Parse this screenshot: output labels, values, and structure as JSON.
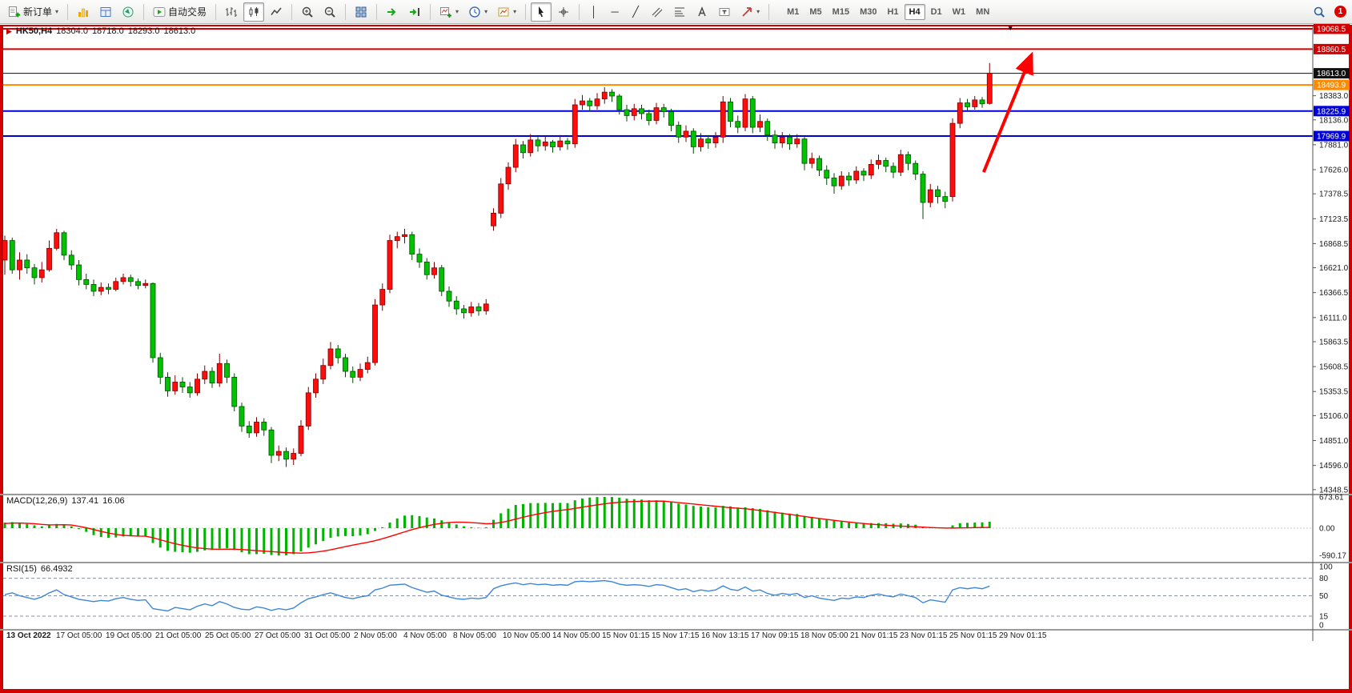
{
  "toolbar": {
    "new_order_label": "新订单",
    "autotrading_label": "自动交易",
    "timeframes": [
      "M1",
      "M5",
      "M15",
      "M30",
      "H1",
      "H4",
      "D1",
      "W1",
      "MN"
    ],
    "active_timeframe": "H4",
    "notification_badge": "1"
  },
  "chart": {
    "symbol_label": "HK50,H4",
    "open": "18304.0",
    "high": "18718.0",
    "low": "18293.0",
    "close": "18613.0",
    "price_axis_labels": [
      18383.0,
      18136.0,
      17881.0,
      17626.0,
      17378.5,
      17123.5,
      16868.5,
      16621.0,
      16366.5,
      16111.0,
      15863.5,
      15608.5,
      15353.5,
      15106.0,
      14851.0,
      14596.0,
      14348.5
    ],
    "time_axis_labels": [
      "13 Oct 2022",
      "17 Oct 05:00",
      "19 Oct 05:00",
      "21 Oct 05:00",
      "25 Oct 05:00",
      "27 Oct 05:00",
      "31 Oct 05:00",
      "2 Nov 05:00",
      "4 Nov 05:00",
      "8 Nov 05:00",
      "10 Nov 05:00",
      "14 Nov 05:00",
      "15 Nov 01:15",
      "15 Nov 17:15",
      "16 Nov 13:15",
      "17 Nov 09:15",
      "18 Nov 05:00",
      "21 Nov 01:15",
      "23 Nov 01:15",
      "25 Nov 01:15",
      "29 Nov 01:15"
    ],
    "levels": [
      {
        "price": 19068.5,
        "label": "19068.5",
        "color": "#d20000",
        "width": 2
      },
      {
        "price": 18860.5,
        "label": "18860.5",
        "color": "#d20000",
        "width": 2
      },
      {
        "price": 18613.0,
        "label": "18613.0",
        "color": "#111111",
        "width": 1
      },
      {
        "price": 18493.9,
        "label": "18493.9",
        "color": "#ff8a00",
        "width": 2
      },
      {
        "price": 18225.9,
        "label": "18225.9",
        "color": "#0000d8",
        "width": 2
      },
      {
        "price": 17969.9,
        "label": "17969.9",
        "color": "#0000d8",
        "width": 2
      }
    ],
    "colors": {
      "up": "#ff0d0d",
      "down": "#00c300",
      "up_stroke": "#7d0000",
      "down_stroke": "#004d00",
      "rsi_line": "#3e86d8",
      "macd_bar": "#00b400",
      "macd_signal": "#ff0000",
      "frame": "#d40000"
    },
    "annotations": {
      "arrow": {
        "from_bar": 132.2,
        "from_price": 17600,
        "to_bar": 138.6,
        "to_price": 18790,
        "color": "#ff0000"
      },
      "marker": {
        "bar": 135.8,
        "price": 19085,
        "glyph": "▼"
      }
    }
  },
  "macd": {
    "name": "MACD(12,26,9)",
    "main_value": "137.41",
    "signal_value": "16.06",
    "scale_values": [
      673.61,
      0,
      -590.17
    ],
    "histogram": [
      120,
      130,
      110,
      90,
      60,
      40,
      60,
      90,
      80,
      40,
      -20,
      -80,
      -150,
      -190,
      -210,
      -200,
      -180,
      -170,
      -180,
      -170,
      -320,
      -420,
      -490,
      -510,
      -520,
      -530,
      -510,
      -480,
      -470,
      -440,
      -430,
      -470,
      -520,
      -560,
      -560,
      -550,
      -580,
      -590,
      -585,
      -560,
      -500,
      -420,
      -350,
      -280,
      -210,
      -180,
      -170,
      -175,
      -160,
      -130,
      -60,
      20,
      120,
      210,
      270,
      280,
      260,
      230,
      210,
      170,
      120,
      80,
      40,
      20,
      10,
      20,
      180,
      320,
      420,
      500,
      520,
      540,
      540,
      545,
      540,
      545,
      540,
      600,
      640,
      660,
      670,
      674,
      670,
      655,
      635,
      625,
      615,
      600,
      600,
      590,
      565,
      530,
      510,
      480,
      465,
      450,
      445,
      480,
      470,
      445,
      450,
      430,
      415,
      385,
      355,
      335,
      315,
      305,
      265,
      240,
      215,
      185,
      155,
      140,
      120,
      115,
      105,
      110,
      110,
      105,
      95,
      100,
      90,
      75,
      35,
      15,
      5,
      -10,
      60,
      105,
      115,
      120,
      125,
      137.41
    ],
    "signal": [
      100,
      108,
      110,
      105,
      95,
      80,
      70,
      72,
      74,
      68,
      40,
      10,
      -30,
      -70,
      -105,
      -135,
      -155,
      -165,
      -172,
      -174,
      -205,
      -250,
      -295,
      -335,
      -370,
      -400,
      -425,
      -440,
      -452,
      -455,
      -452,
      -453,
      -460,
      -472,
      -484,
      -494,
      -505,
      -517,
      -528,
      -534,
      -538,
      -532,
      -517,
      -495,
      -466,
      -432,
      -398,
      -366,
      -336,
      -305,
      -270,
      -228,
      -180,
      -130,
      -80,
      -32,
      10,
      48,
      80,
      105,
      122,
      130,
      128,
      120,
      108,
      95,
      100,
      122,
      155,
      195,
      235,
      272,
      305,
      335,
      360,
      382,
      400,
      425,
      452,
      478,
      502,
      524,
      543,
      557,
      567,
      574,
      578,
      580,
      582,
      583,
      566,
      551,
      536,
      520,
      504,
      488,
      472,
      456,
      441,
      430,
      420,
      400,
      380,
      360,
      340,
      318,
      296,
      274,
      252,
      230,
      208,
      188,
      168,
      150,
      132,
      116,
      100,
      86,
      74,
      63,
      53,
      45,
      38,
      30,
      22,
      14,
      8,
      3,
      2,
      5,
      8,
      11,
      14,
      16.06
    ]
  },
  "rsi": {
    "name": "RSI(15)",
    "value": "66.4932",
    "scale_values": [
      100,
      80,
      50,
      15,
      0
    ],
    "levels": [
      80,
      50,
      15
    ],
    "values": [
      52,
      55,
      50,
      47,
      44,
      48,
      55,
      60,
      52,
      48,
      44,
      42,
      40,
      42,
      41,
      45,
      47,
      44,
      42,
      43,
      28,
      26,
      24,
      30,
      28,
      26,
      32,
      36,
      33,
      40,
      36,
      30,
      27,
      26,
      31,
      29,
      25,
      28,
      26,
      29,
      38,
      45,
      48,
      52,
      55,
      51,
      47,
      45,
      48,
      50,
      60,
      63,
      68,
      69,
      70,
      64,
      60,
      56,
      58,
      51,
      48,
      45,
      44,
      46,
      45,
      47,
      62,
      67,
      70,
      72,
      69,
      71,
      69,
      70,
      68,
      69,
      68,
      74,
      75,
      74,
      75,
      76,
      74,
      70,
      68,
      69,
      68,
      66,
      69,
      68,
      64,
      60,
      62,
      57,
      60,
      58,
      60,
      67,
      61,
      59,
      65,
      58,
      60,
      54,
      51,
      54,
      52,
      54,
      47,
      50,
      46,
      44,
      42,
      46,
      45,
      48,
      47,
      51,
      53,
      50,
      48,
      53,
      50,
      47,
      38,
      43,
      41,
      39,
      60,
      64,
      62,
      64,
      62,
      66.49
    ]
  },
  "chart_data": {
    "type": "candlestick",
    "symbol": "HK50",
    "timeframe": "H4",
    "up_means": "red (CN convention)",
    "candles": [
      [
        16700,
        16950,
        16550,
        16900
      ],
      [
        16900,
        16930,
        16560,
        16600
      ],
      [
        16600,
        16780,
        16500,
        16700
      ],
      [
        16700,
        16760,
        16560,
        16620
      ],
      [
        16620,
        16660,
        16450,
        16520
      ],
      [
        16520,
        16680,
        16470,
        16600
      ],
      [
        16600,
        16900,
        16580,
        16820
      ],
      [
        16820,
        17020,
        16800,
        16980
      ],
      [
        16980,
        17000,
        16700,
        16750
      ],
      [
        16750,
        16800,
        16600,
        16650
      ],
      [
        16650,
        16700,
        16440,
        16500
      ],
      [
        16500,
        16560,
        16400,
        16450
      ],
      [
        16450,
        16500,
        16330,
        16380
      ],
      [
        16380,
        16470,
        16340,
        16420
      ],
      [
        16420,
        16460,
        16350,
        16400
      ],
      [
        16400,
        16520,
        16380,
        16480
      ],
      [
        16480,
        16560,
        16450,
        16520
      ],
      [
        16520,
        16550,
        16430,
        16480
      ],
      [
        16480,
        16510,
        16400,
        16440
      ],
      [
        16440,
        16500,
        16410,
        16460
      ],
      [
        16460,
        16470,
        15650,
        15700
      ],
      [
        15700,
        15750,
        15430,
        15500
      ],
      [
        15500,
        15550,
        15300,
        15360
      ],
      [
        15360,
        15520,
        15320,
        15450
      ],
      [
        15450,
        15500,
        15340,
        15400
      ],
      [
        15400,
        15450,
        15290,
        15340
      ],
      [
        15340,
        15540,
        15310,
        15480
      ],
      [
        15480,
        15620,
        15430,
        15560
      ],
      [
        15560,
        15600,
        15390,
        15440
      ],
      [
        15440,
        15740,
        15400,
        15640
      ],
      [
        15640,
        15680,
        15440,
        15500
      ],
      [
        15500,
        15540,
        15150,
        15200
      ],
      [
        15200,
        15240,
        14940,
        15000
      ],
      [
        15000,
        15050,
        14880,
        14930
      ],
      [
        14930,
        15090,
        14890,
        15040
      ],
      [
        15040,
        15080,
        14900,
        14960
      ],
      [
        14960,
        14990,
        14620,
        14700
      ],
      [
        14700,
        14800,
        14640,
        14740
      ],
      [
        14740,
        14780,
        14580,
        14660
      ],
      [
        14660,
        14770,
        14600,
        14720
      ],
      [
        14720,
        15060,
        14690,
        15000
      ],
      [
        15000,
        15400,
        14960,
        15340
      ],
      [
        15340,
        15540,
        15290,
        15480
      ],
      [
        15480,
        15690,
        15430,
        15620
      ],
      [
        15620,
        15860,
        15580,
        15790
      ],
      [
        15790,
        15830,
        15640,
        15700
      ],
      [
        15700,
        15740,
        15500,
        15560
      ],
      [
        15560,
        15610,
        15440,
        15500
      ],
      [
        15500,
        15640,
        15460,
        15580
      ],
      [
        15580,
        15710,
        15540,
        15650
      ],
      [
        15650,
        16300,
        15620,
        16240
      ],
      [
        16240,
        16460,
        16180,
        16400
      ],
      [
        16400,
        16960,
        16360,
        16900
      ],
      [
        16900,
        16990,
        16820,
        16940
      ],
      [
        16940,
        17020,
        16870,
        16960
      ],
      [
        16960,
        16990,
        16700,
        16760
      ],
      [
        16760,
        16820,
        16620,
        16680
      ],
      [
        16680,
        16720,
        16500,
        16550
      ],
      [
        16550,
        16680,
        16510,
        16620
      ],
      [
        16620,
        16650,
        16330,
        16380
      ],
      [
        16380,
        16430,
        16220,
        16280
      ],
      [
        16280,
        16330,
        16140,
        16200
      ],
      [
        16200,
        16240,
        16100,
        16160
      ],
      [
        16160,
        16270,
        16120,
        16220
      ],
      [
        16220,
        16260,
        16130,
        16180
      ],
      [
        16180,
        16300,
        16140,
        16250
      ],
      [
        17050,
        17230,
        17000,
        17180
      ],
      [
        17180,
        17540,
        17130,
        17480
      ],
      [
        17480,
        17700,
        17420,
        17650
      ],
      [
        17650,
        17940,
        17600,
        17880
      ],
      [
        17880,
        17920,
        17740,
        17800
      ],
      [
        17800,
        17990,
        17760,
        17930
      ],
      [
        17930,
        17960,
        17810,
        17870
      ],
      [
        17870,
        17970,
        17820,
        17910
      ],
      [
        17910,
        17930,
        17800,
        17860
      ],
      [
        17860,
        17980,
        17820,
        17920
      ],
      [
        17920,
        17950,
        17830,
        17890
      ],
      [
        17890,
        18350,
        17850,
        18290
      ],
      [
        18290,
        18390,
        18240,
        18330
      ],
      [
        18330,
        18360,
        18220,
        18280
      ],
      [
        18280,
        18410,
        18240,
        18350
      ],
      [
        18350,
        18470,
        18300,
        18420
      ],
      [
        18420,
        18450,
        18320,
        18380
      ],
      [
        18380,
        18400,
        18190,
        18240
      ],
      [
        18240,
        18290,
        18120,
        18180
      ],
      [
        18180,
        18300,
        18130,
        18250
      ],
      [
        18250,
        18290,
        18140,
        18200
      ],
      [
        18200,
        18240,
        18080,
        18130
      ],
      [
        18130,
        18310,
        18090,
        18260
      ],
      [
        18260,
        18300,
        18160,
        18220
      ],
      [
        18220,
        18250,
        18020,
        18080
      ],
      [
        18080,
        18120,
        17900,
        17960
      ],
      [
        17960,
        18080,
        17910,
        18020
      ],
      [
        18020,
        18050,
        17790,
        17860
      ],
      [
        17860,
        18000,
        17810,
        17940
      ],
      [
        17940,
        17980,
        17840,
        17900
      ],
      [
        17900,
        18010,
        17850,
        17960
      ],
      [
        17960,
        18380,
        17900,
        18320
      ],
      [
        18320,
        18360,
        18060,
        18120
      ],
      [
        18120,
        18180,
        18000,
        18060
      ],
      [
        18060,
        18400,
        18020,
        18350
      ],
      [
        18350,
        18380,
        18000,
        18060
      ],
      [
        18060,
        18190,
        18010,
        18120
      ],
      [
        18120,
        18150,
        17920,
        17980
      ],
      [
        17980,
        18030,
        17840,
        17900
      ],
      [
        17900,
        18010,
        17850,
        17960
      ],
      [
        17960,
        17990,
        17830,
        17890
      ],
      [
        17890,
        17990,
        17850,
        17940
      ],
      [
        17940,
        17960,
        17620,
        17690
      ],
      [
        17690,
        17800,
        17640,
        17740
      ],
      [
        17740,
        17770,
        17560,
        17620
      ],
      [
        17620,
        17670,
        17470,
        17540
      ],
      [
        17540,
        17590,
        17380,
        17460
      ],
      [
        17460,
        17610,
        17420,
        17560
      ],
      [
        17560,
        17600,
        17460,
        17520
      ],
      [
        17520,
        17660,
        17480,
        17610
      ],
      [
        17610,
        17640,
        17510,
        17570
      ],
      [
        17570,
        17730,
        17530,
        17680
      ],
      [
        17680,
        17780,
        17630,
        17720
      ],
      [
        17720,
        17750,
        17600,
        17660
      ],
      [
        17660,
        17700,
        17540,
        17600
      ],
      [
        17600,
        17830,
        17560,
        17780
      ],
      [
        17780,
        17810,
        17620,
        17690
      ],
      [
        17690,
        17720,
        17520,
        17580
      ],
      [
        17580,
        17610,
        17120,
        17290
      ],
      [
        17290,
        17480,
        17240,
        17420
      ],
      [
        17420,
        17460,
        17280,
        17350
      ],
      [
        17350,
        17400,
        17230,
        17300
      ],
      [
        17350,
        18150,
        17300,
        18100
      ],
      [
        18100,
        18360,
        18050,
        18310
      ],
      [
        18310,
        18350,
        18230,
        18270
      ],
      [
        18270,
        18380,
        18240,
        18340
      ],
      [
        18340,
        18370,
        18260,
        18300
      ],
      [
        18304,
        18718,
        18293,
        18613
      ]
    ]
  }
}
